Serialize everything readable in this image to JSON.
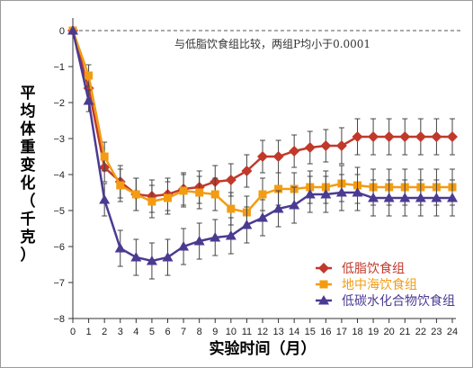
{
  "chart_data": {
    "type": "line",
    "xlabel": "实验时间（月）",
    "ylabel": "平均体重变化（千克）",
    "xlim": [
      0,
      24
    ],
    "ylim": [
      -8,
      0
    ],
    "x": [
      0,
      1,
      2,
      3,
      4,
      5,
      6,
      7,
      8,
      9,
      10,
      11,
      12,
      13,
      14,
      15,
      16,
      17,
      18,
      19,
      20,
      21,
      22,
      23,
      24
    ],
    "x_ticks": [
      0,
      1,
      2,
      3,
      4,
      5,
      6,
      7,
      8,
      9,
      10,
      11,
      12,
      13,
      14,
      15,
      16,
      17,
      18,
      19,
      20,
      21,
      22,
      23,
      24
    ],
    "y_ticks": [
      0,
      -1,
      -2,
      -3,
      -4,
      -5,
      -6,
      -7,
      -8
    ],
    "reference_line": {
      "y": 0,
      "style": "dashed"
    },
    "annotation": "与低脂饮食组比较，两组P均小于0.0001",
    "legend_position": "bottom-right",
    "series": [
      {
        "name": "低脂饮食组",
        "color": "#c0392b",
        "marker": "diamond",
        "values": [
          0,
          -1.6,
          -3.8,
          -4.2,
          -4.55,
          -4.6,
          -4.55,
          -4.4,
          -4.35,
          -4.2,
          -4.15,
          -3.9,
          -3.5,
          -3.5,
          -3.35,
          -3.25,
          -3.2,
          -3.2,
          -2.95,
          -2.95,
          -2.95,
          -2.95,
          -2.95,
          -2.95,
          -2.95
        ],
        "errors": [
          0.4,
          0.3,
          0.4,
          0.45,
          0.45,
          0.45,
          0.45,
          0.45,
          0.45,
          0.45,
          0.45,
          0.45,
          0.45,
          0.45,
          0.45,
          0.45,
          0.45,
          0.5,
          0.5,
          0.5,
          0.5,
          0.5,
          0.5,
          0.5,
          0.5
        ]
      },
      {
        "name": "地中海饮食组",
        "color": "#f39c12",
        "marker": "square",
        "values": [
          0,
          -1.25,
          -3.5,
          -4.3,
          -4.55,
          -4.75,
          -4.65,
          -4.45,
          -4.5,
          -4.55,
          -4.95,
          -5.05,
          -4.55,
          -4.4,
          -4.4,
          -4.35,
          -4.35,
          -4.25,
          -4.3,
          -4.35,
          -4.35,
          -4.35,
          -4.35,
          -4.35,
          -4.35
        ],
        "errors": [
          0.4,
          0.3,
          0.4,
          0.45,
          0.45,
          0.45,
          0.45,
          0.45,
          0.45,
          0.45,
          0.45,
          0.45,
          0.45,
          0.45,
          0.45,
          0.45,
          0.45,
          0.5,
          0.5,
          0.5,
          0.5,
          0.5,
          0.5,
          0.5,
          0.5
        ]
      },
      {
        "name": "低碳水化合物饮食组",
        "color": "#4b3a92",
        "marker": "triangle",
        "values": [
          0,
          -1.95,
          -4.7,
          -6.05,
          -6.3,
          -6.4,
          -6.3,
          -6.0,
          -5.85,
          -5.75,
          -5.7,
          -5.4,
          -5.2,
          -4.95,
          -4.85,
          -4.55,
          -4.55,
          -4.5,
          -4.5,
          -4.65,
          -4.65,
          -4.65,
          -4.65,
          -4.65,
          -4.65
        ],
        "errors": [
          0.4,
          0.3,
          0.45,
          0.5,
          0.5,
          0.5,
          0.5,
          0.5,
          0.5,
          0.5,
          0.5,
          0.5,
          0.5,
          0.5,
          0.5,
          0.5,
          0.5,
          0.5,
          0.5,
          0.5,
          0.5,
          0.5,
          0.5,
          0.5,
          0.5
        ]
      }
    ]
  }
}
